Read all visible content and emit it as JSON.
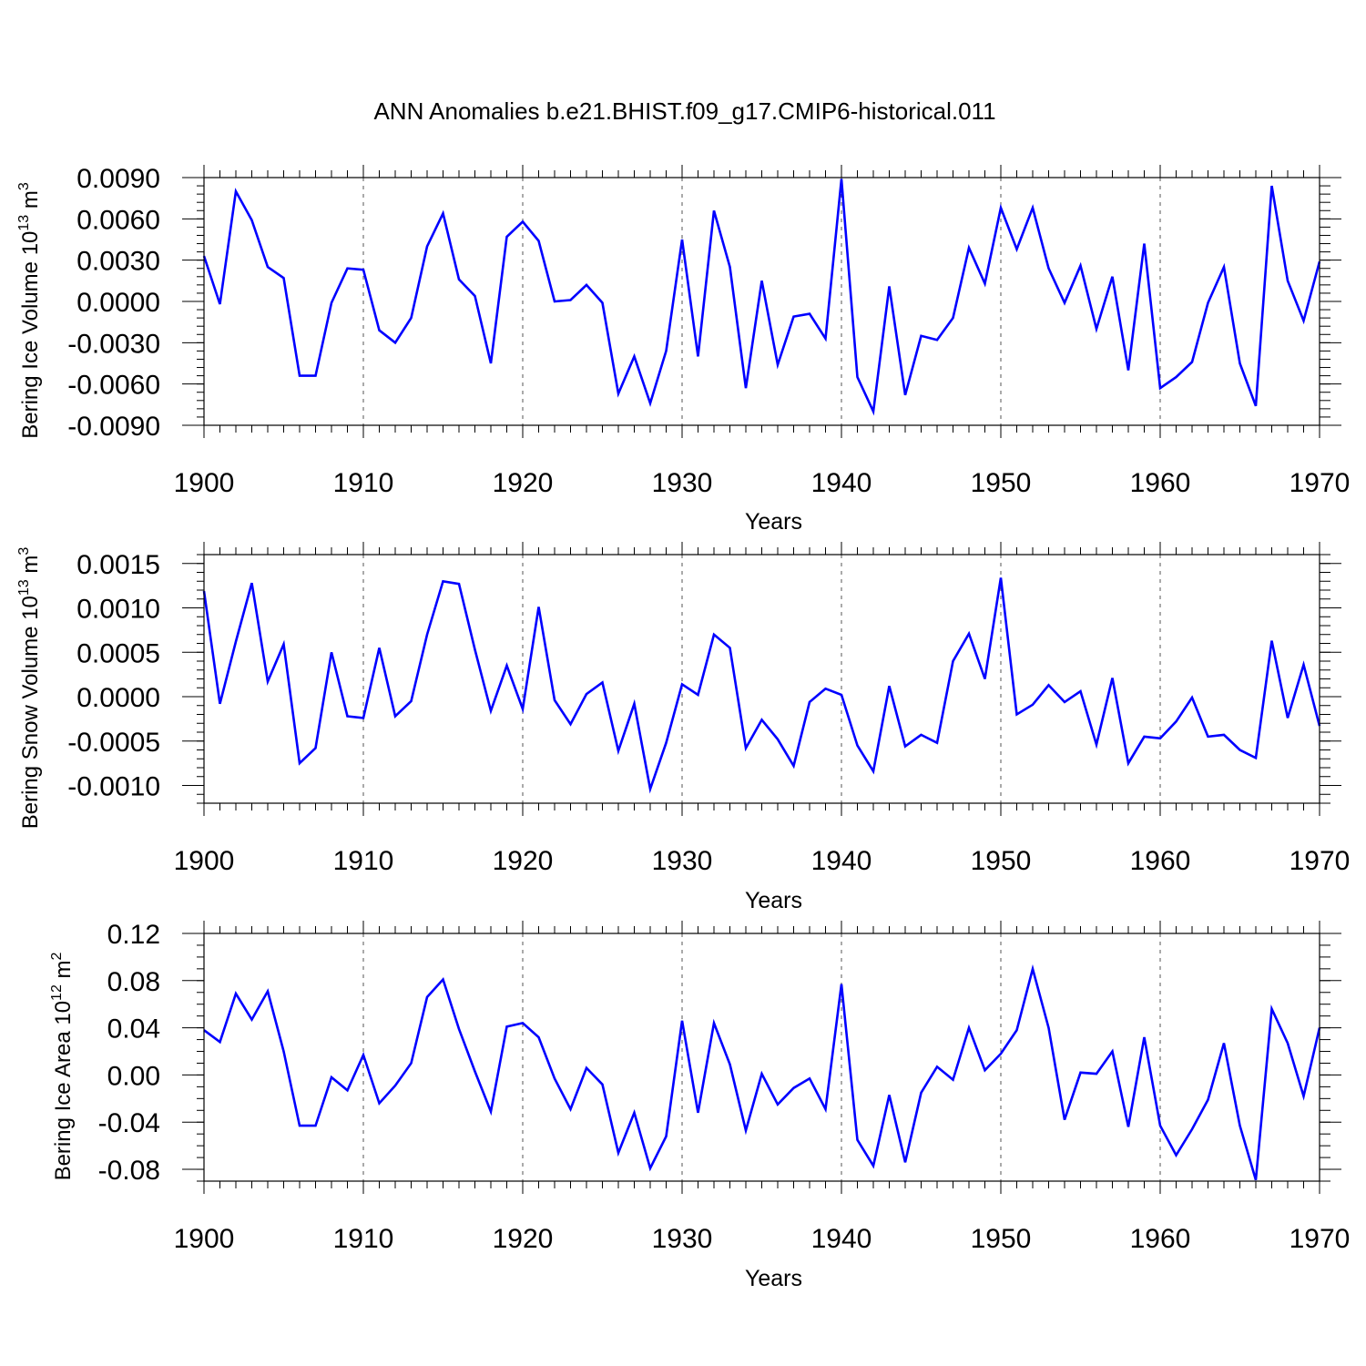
{
  "title": "ANN Anomalies b.e21.BHIST.f09_g17.CMIP6-historical.011",
  "line_color": "#0000ff",
  "chart_data": [
    {
      "type": "line",
      "ylabel": {
        "text": "Bering Ice Volume 10",
        "sup": "13",
        "unit": " m",
        "unit_sup": "3"
      },
      "xlabel": "Years",
      "xlim": [
        1900,
        1970
      ],
      "ylim": [
        -0.009,
        0.009
      ],
      "yticks": [
        "0.0090",
        "0.0060",
        "0.0030",
        "0.0000",
        "-0.0030",
        "-0.0060",
        "-0.0090"
      ],
      "ytick_values": [
        0.009,
        0.006,
        0.003,
        0.0,
        -0.003,
        -0.006,
        -0.009
      ],
      "xticks": [
        "1900",
        "1910",
        "1920",
        "1930",
        "1940",
        "1950",
        "1960",
        "1970"
      ],
      "grid": "dashed vertical at decades",
      "series": [
        {
          "name": "Bering Ice Volume",
          "values": [
            0.0033,
            -0.0002,
            0.008,
            0.0059,
            0.0025,
            0.0017,
            -0.0054,
            -0.0054,
            -0.0001,
            0.0024,
            0.0023,
            -0.0021,
            -0.003,
            -0.0012,
            0.004,
            0.0064,
            0.0016,
            0.0004,
            -0.0045,
            0.0047,
            0.0058,
            0.0044,
            0.0,
            0.0001,
            0.0012,
            -0.0001,
            -0.0067,
            -0.004,
            -0.0074,
            -0.0036,
            0.0045,
            -0.004,
            0.0066,
            0.0025,
            -0.0063,
            0.0015,
            -0.0046,
            -0.0011,
            -0.0009,
            -0.0027,
            0.0089,
            -0.0055,
            -0.008,
            0.0011,
            -0.0068,
            -0.0025,
            -0.0028,
            -0.0012,
            0.0039,
            0.0013,
            0.0068,
            0.0038,
            0.0068,
            0.0024,
            -0.0001,
            0.0026,
            -0.002,
            0.0018,
            -0.005,
            0.0042,
            -0.0063,
            -0.0055,
            -0.0044,
            -0.0001,
            0.0025,
            -0.0045,
            -0.0076,
            0.0084,
            0.0015,
            -0.0014,
            0.0029
          ]
        }
      ]
    },
    {
      "type": "line",
      "ylabel": {
        "text": "Bering Snow Volume 10",
        "sup": "13",
        "unit": " m",
        "unit_sup": "3"
      },
      "xlabel": "Years",
      "xlim": [
        1900,
        1970
      ],
      "ylim": [
        -0.0012,
        0.0016
      ],
      "yticks": [
        "0.0015",
        "0.0010",
        "0.0005",
        "0.0000",
        "-0.0005",
        "-0.0010"
      ],
      "ytick_values": [
        0.0015,
        0.001,
        0.0005,
        0.0,
        -0.0005,
        -0.001
      ],
      "xticks": [
        "1900",
        "1910",
        "1920",
        "1930",
        "1940",
        "1950",
        "1960",
        "1970"
      ],
      "grid": "dashed vertical at decades",
      "series": [
        {
          "name": "Bering Snow Volume",
          "values": [
            0.00119,
            -8e-05,
            0.00062,
            0.00128,
            0.00017,
            0.00059,
            -0.00075,
            -0.00058,
            0.0005,
            -0.00022,
            -0.00024,
            0.00055,
            -0.00022,
            -5e-05,
            0.0007,
            0.0013,
            0.00127,
            0.00053,
            -0.00016,
            0.00035,
            -0.00014,
            0.00101,
            -4e-05,
            -0.00031,
            3e-05,
            0.00016,
            -0.00061,
            -8e-05,
            -0.00104,
            -0.00052,
            0.00014,
            2e-05,
            0.0007,
            0.00055,
            -0.00058,
            -0.00026,
            -0.00048,
            -0.00078,
            -6e-05,
            9e-05,
            2e-05,
            -0.00055,
            -0.00084,
            0.00012,
            -0.00056,
            -0.00043,
            -0.00052,
            0.0004,
            0.00071,
            0.0002,
            0.00134,
            -0.0002,
            -9e-05,
            0.00013,
            -6e-05,
            6e-05,
            -0.00054,
            0.00021,
            -0.00075,
            -0.00045,
            -0.00047,
            -0.00028,
            -1e-05,
            -0.00045,
            -0.00043,
            -0.0006,
            -0.00069,
            0.00063,
            -0.00024,
            0.00036,
            -0.00033
          ]
        }
      ]
    },
    {
      "type": "line",
      "ylabel": {
        "text": "Bering Ice Area 10",
        "sup": "12",
        "unit": " m",
        "unit_sup": "2"
      },
      "xlabel": "Years",
      "xlim": [
        1900,
        1970
      ],
      "ylim": [
        -0.09,
        0.12
      ],
      "yticks": [
        "0.12",
        "0.08",
        "0.04",
        "0.00",
        "-0.04",
        "-0.08"
      ],
      "ytick_values": [
        0.12,
        0.08,
        0.04,
        0.0,
        -0.04,
        -0.08
      ],
      "xticks": [
        "1900",
        "1910",
        "1920",
        "1930",
        "1940",
        "1950",
        "1960",
        "1970"
      ],
      "grid": "dashed vertical at decades",
      "series": [
        {
          "name": "Bering Ice Area",
          "values": [
            0.038,
            0.028,
            0.069,
            0.047,
            0.071,
            0.02,
            -0.043,
            -0.043,
            -0.002,
            -0.013,
            0.017,
            -0.024,
            -0.009,
            0.01,
            0.066,
            0.081,
            0.039,
            0.003,
            -0.031,
            0.041,
            0.044,
            0.032,
            -0.003,
            -0.029,
            0.006,
            -0.008,
            -0.066,
            -0.032,
            -0.079,
            -0.052,
            0.046,
            -0.032,
            0.044,
            0.009,
            -0.047,
            0.001,
            -0.025,
            -0.011,
            -0.003,
            -0.029,
            0.077,
            -0.055,
            -0.077,
            -0.017,
            -0.074,
            -0.015,
            0.007,
            -0.004,
            0.04,
            0.004,
            0.018,
            0.038,
            0.09,
            0.04,
            -0.038,
            0.002,
            0.001,
            0.02,
            -0.044,
            0.032,
            -0.043,
            -0.068,
            -0.046,
            -0.021,
            0.027,
            -0.043,
            -0.089,
            0.056,
            0.027,
            -0.018,
            0.04
          ]
        }
      ]
    }
  ]
}
